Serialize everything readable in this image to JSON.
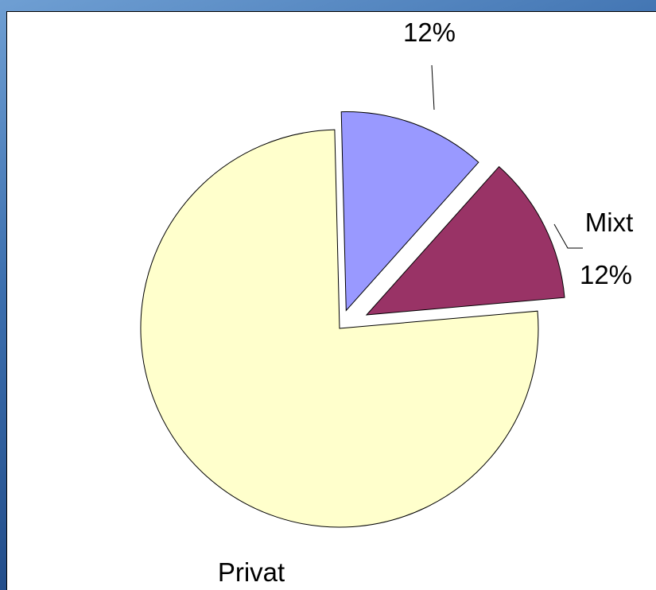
{
  "chart_data": {
    "type": "pie",
    "title": "",
    "categories": [
      "Privat",
      "",
      "Mixt"
    ],
    "values": [
      76,
      12,
      12
    ],
    "percent_labels": [
      "",
      "12%",
      "12%"
    ],
    "colors": [
      "#ffffcc",
      "#9999ff",
      "#993366"
    ],
    "legend": "none"
  }
}
